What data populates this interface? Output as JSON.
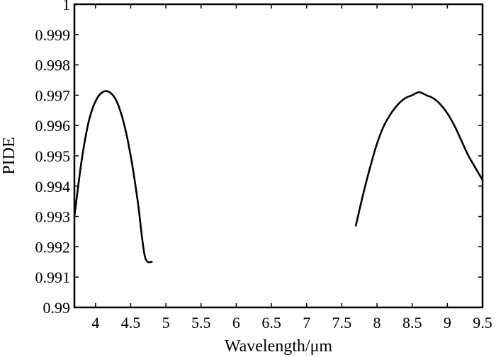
{
  "chart_data": {
    "type": "line",
    "title": "",
    "xlabel": "Wavelength/μm",
    "ylabel": "PIDE",
    "xlim": [
      3.7,
      9.5
    ],
    "ylim": [
      0.99,
      1.0
    ],
    "x_ticks": [
      "4",
      "4.5",
      "5",
      "5.5",
      "6",
      "6.5",
      "7",
      "7.5",
      "8",
      "8.5",
      "9",
      "9.5"
    ],
    "y_ticks": [
      "0.99",
      "0.991",
      "0.992",
      "0.993",
      "0.994",
      "0.995",
      "0.996",
      "0.997",
      "0.998",
      "0.999",
      "1"
    ],
    "grid": false,
    "legend": "none",
    "series": [
      {
        "x": [
          3.7,
          3.8,
          3.9,
          4.0,
          4.1,
          4.2,
          4.3,
          4.4,
          4.5,
          4.6,
          4.7,
          4.8
        ],
        "y": [
          0.993,
          0.9948,
          0.9961,
          0.9968,
          0.9971,
          0.9971,
          0.9968,
          0.9961,
          0.995,
          0.9935,
          0.9917,
          0.9915
        ]
      },
      {
        "x": [
          7.7,
          7.8,
          7.9,
          8.0,
          8.1,
          8.2,
          8.3,
          8.4,
          8.5,
          8.6,
          8.7,
          8.8,
          8.9,
          9.0,
          9.1,
          9.2,
          9.3,
          9.4,
          9.5
        ],
        "y": [
          0.9927,
          0.9937,
          0.9946,
          0.9954,
          0.996,
          0.9964,
          0.9967,
          0.9969,
          0.997,
          0.9971,
          0.997,
          0.9969,
          0.9967,
          0.9964,
          0.996,
          0.9955,
          0.995,
          0.9946,
          0.9942
        ]
      }
    ]
  }
}
